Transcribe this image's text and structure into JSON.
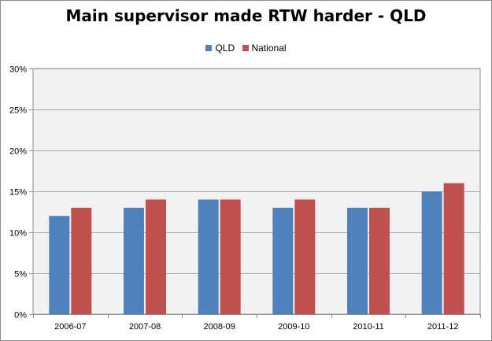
{
  "chart_data": {
    "type": "bar",
    "title": "Main supervisor made RTW harder - QLD",
    "categories": [
      "2006-07",
      "2007-08",
      "2008-09",
      "2009-10",
      "2010-11",
      "2011-12"
    ],
    "series": [
      {
        "name": "QLD",
        "color": "#4f81bd",
        "values": [
          0.12,
          0.13,
          0.14,
          0.13,
          0.13,
          0.15
        ]
      },
      {
        "name": "National",
        "color": "#c0504d",
        "values": [
          0.13,
          0.14,
          0.14,
          0.14,
          0.13,
          0.16
        ]
      }
    ],
    "ylim": [
      0,
      0.3
    ],
    "yticks": [
      0,
      0.05,
      0.1,
      0.15,
      0.2,
      0.25,
      0.3
    ],
    "ytick_labels": [
      "0%",
      "5%",
      "10%",
      "15%",
      "20%",
      "25%",
      "30%"
    ],
    "legend_position": "top",
    "grid": true,
    "plot_background": "#f2f2f2",
    "gridline_color": "#a6a6a6"
  }
}
